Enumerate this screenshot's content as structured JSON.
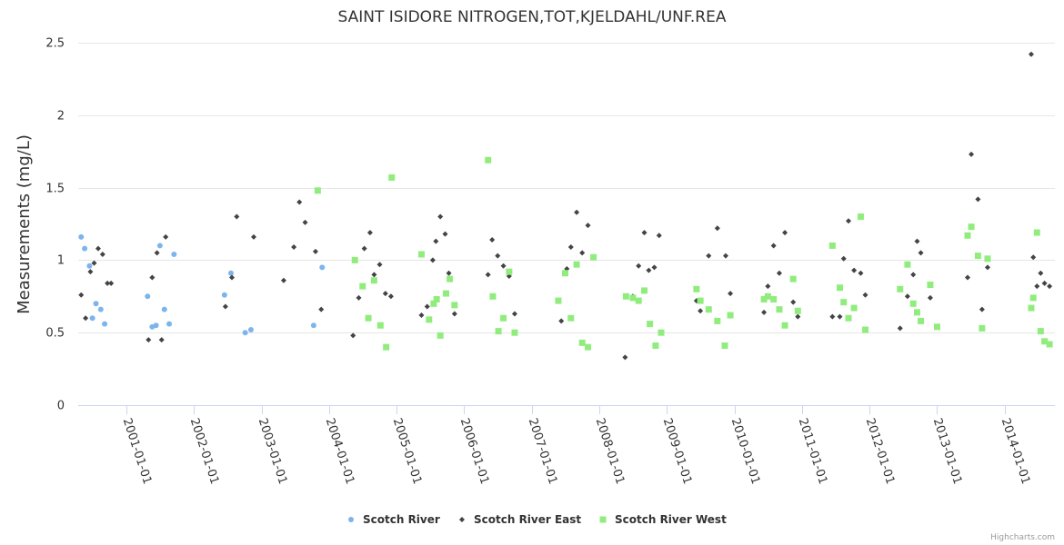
{
  "credits": "Highcharts.com",
  "chart_data": {
    "type": "scatter",
    "title": "SAINT ISIDORE NITROGEN,TOT,KJELDAHL/UNF.REA",
    "xlabel": "",
    "ylabel": "Measurements (mg/L)",
    "ylim": [
      0,
      2.5
    ],
    "yticks": [
      0,
      0.5,
      1,
      1.5,
      2,
      2.5
    ],
    "ytick_labels": [
      "0",
      "0.5",
      "1",
      "1.5",
      "2",
      "2.5"
    ],
    "xlim": [
      "2000-04-15",
      "2014-09-30"
    ],
    "xticks": [
      "2001-01-01",
      "2002-01-01",
      "2003-01-01",
      "2004-01-01",
      "2005-01-01",
      "2006-01-01",
      "2007-01-01",
      "2008-01-01",
      "2009-01-01",
      "2010-01-01",
      "2011-01-01",
      "2012-01-01",
      "2013-01-01",
      "2014-01-01"
    ],
    "grid": true,
    "legend_position": "bottom-center",
    "series": [
      {
        "name": "Scotch River",
        "color": "#7cb5ec",
        "marker": "circle",
        "points": [
          [
            "2000-05-01",
            1.16
          ],
          [
            "2000-05-20",
            1.08
          ],
          [
            "2000-06-15",
            0.96
          ],
          [
            "2000-07-01",
            0.6
          ],
          [
            "2000-07-20",
            0.7
          ],
          [
            "2000-08-15",
            0.66
          ],
          [
            "2000-09-05",
            0.56
          ],
          [
            "2001-04-25",
            0.75
          ],
          [
            "2001-05-20",
            0.54
          ],
          [
            "2001-06-10",
            0.55
          ],
          [
            "2001-07-01",
            1.1
          ],
          [
            "2001-07-25",
            0.66
          ],
          [
            "2001-08-20",
            0.56
          ],
          [
            "2001-09-15",
            1.04
          ],
          [
            "2002-06-15",
            0.76
          ],
          [
            "2002-07-20",
            0.91
          ],
          [
            "2002-10-05",
            0.5
          ],
          [
            "2002-11-05",
            0.52
          ],
          [
            "2003-10-10",
            0.55
          ],
          [
            "2003-11-25",
            0.95
          ]
        ]
      },
      {
        "name": "Scotch River East",
        "color": "#434348",
        "marker": "diamond",
        "points": [
          [
            "2000-05-01",
            0.76
          ],
          [
            "2000-05-25",
            0.6
          ],
          [
            "2000-06-20",
            0.92
          ],
          [
            "2000-07-10",
            0.98
          ],
          [
            "2000-08-01",
            1.08
          ],
          [
            "2000-08-25",
            1.04
          ],
          [
            "2000-09-20",
            0.84
          ],
          [
            "2000-10-10",
            0.84
          ],
          [
            "2001-04-30",
            0.45
          ],
          [
            "2001-05-20",
            0.88
          ],
          [
            "2001-06-15",
            1.05
          ],
          [
            "2001-07-10",
            0.45
          ],
          [
            "2001-08-01",
            1.16
          ],
          [
            "2002-06-20",
            0.68
          ],
          [
            "2002-07-25",
            0.88
          ],
          [
            "2002-08-20",
            1.3
          ],
          [
            "2002-11-20",
            1.16
          ],
          [
            "2003-05-01",
            0.86
          ],
          [
            "2003-06-25",
            1.09
          ],
          [
            "2003-07-25",
            1.4
          ],
          [
            "2003-08-25",
            1.26
          ],
          [
            "2003-10-20",
            1.06
          ],
          [
            "2003-11-20",
            0.66
          ],
          [
            "2004-05-10",
            0.48
          ],
          [
            "2004-06-10",
            0.74
          ],
          [
            "2004-07-10",
            1.08
          ],
          [
            "2004-08-10",
            1.19
          ],
          [
            "2004-09-01",
            0.9
          ],
          [
            "2004-10-01",
            0.97
          ],
          [
            "2004-11-01",
            0.77
          ],
          [
            "2004-12-01",
            0.75
          ],
          [
            "2005-05-15",
            0.62
          ],
          [
            "2005-06-15",
            0.68
          ],
          [
            "2005-07-15",
            1.0
          ],
          [
            "2005-08-01",
            1.13
          ],
          [
            "2005-08-25",
            1.3
          ],
          [
            "2005-09-20",
            1.18
          ],
          [
            "2005-10-10",
            0.91
          ],
          [
            "2005-11-10",
            0.63
          ],
          [
            "2006-05-10",
            0.9
          ],
          [
            "2006-06-01",
            1.14
          ],
          [
            "2006-07-01",
            1.03
          ],
          [
            "2006-08-01",
            0.96
          ],
          [
            "2006-09-01",
            0.89
          ],
          [
            "2006-10-01",
            0.63
          ],
          [
            "2007-06-10",
            0.58
          ],
          [
            "2007-07-10",
            0.94
          ],
          [
            "2007-08-01",
            1.09
          ],
          [
            "2007-09-01",
            1.33
          ],
          [
            "2007-10-01",
            1.05
          ],
          [
            "2007-11-01",
            1.24
          ],
          [
            "2008-05-20",
            0.33
          ],
          [
            "2008-07-01",
            0.75
          ],
          [
            "2008-08-01",
            0.96
          ],
          [
            "2008-09-01",
            1.19
          ],
          [
            "2008-09-25",
            0.93
          ],
          [
            "2008-10-25",
            0.95
          ],
          [
            "2008-11-20",
            1.17
          ],
          [
            "2009-06-10",
            0.72
          ],
          [
            "2009-07-01",
            0.65
          ],
          [
            "2009-08-15",
            1.03
          ],
          [
            "2009-10-01",
            1.22
          ],
          [
            "2009-11-15",
            1.03
          ],
          [
            "2009-12-10",
            0.77
          ],
          [
            "2010-06-10",
            0.64
          ],
          [
            "2010-07-01",
            0.82
          ],
          [
            "2010-08-01",
            1.1
          ],
          [
            "2010-09-01",
            0.91
          ],
          [
            "2010-10-01",
            1.19
          ],
          [
            "2010-11-15",
            0.71
          ],
          [
            "2010-12-10",
            0.61
          ],
          [
            "2011-06-15",
            0.61
          ],
          [
            "2011-07-25",
            0.61
          ],
          [
            "2011-08-15",
            1.01
          ],
          [
            "2011-09-10",
            1.27
          ],
          [
            "2011-10-10",
            0.93
          ],
          [
            "2011-11-15",
            0.91
          ],
          [
            "2011-12-10",
            0.76
          ],
          [
            "2012-06-15",
            0.53
          ],
          [
            "2012-07-25",
            0.75
          ],
          [
            "2012-08-25",
            0.9
          ],
          [
            "2012-09-15",
            1.13
          ],
          [
            "2012-10-05",
            1.05
          ],
          [
            "2012-11-25",
            0.74
          ],
          [
            "2013-06-15",
            0.88
          ],
          [
            "2013-07-05",
            1.73
          ],
          [
            "2013-08-10",
            1.42
          ],
          [
            "2013-09-01",
            0.66
          ],
          [
            "2013-10-01",
            0.95
          ],
          [
            "2014-05-25",
            2.42
          ],
          [
            "2014-06-05",
            1.02
          ],
          [
            "2014-06-25",
            0.82
          ],
          [
            "2014-07-15",
            0.91
          ],
          [
            "2014-08-05",
            0.84
          ],
          [
            "2014-09-01",
            0.82
          ]
        ]
      },
      {
        "name": "Scotch River West",
        "color": "#90ed7d",
        "marker": "square",
        "points": [
          [
            "2003-11-01",
            1.48
          ],
          [
            "2004-05-20",
            1.0
          ],
          [
            "2004-07-01",
            0.82
          ],
          [
            "2004-08-01",
            0.6
          ],
          [
            "2004-09-01",
            0.86
          ],
          [
            "2004-10-05",
            0.55
          ],
          [
            "2004-11-05",
            0.4
          ],
          [
            "2004-12-05",
            1.57
          ],
          [
            "2005-05-15",
            1.04
          ],
          [
            "2005-06-25",
            0.59
          ],
          [
            "2005-07-20",
            0.7
          ],
          [
            "2005-08-05",
            0.73
          ],
          [
            "2005-08-25",
            0.48
          ],
          [
            "2005-09-25",
            0.77
          ],
          [
            "2005-10-15",
            0.87
          ],
          [
            "2005-11-10",
            0.69
          ],
          [
            "2006-05-10",
            1.69
          ],
          [
            "2006-06-05",
            0.75
          ],
          [
            "2006-07-05",
            0.51
          ],
          [
            "2006-08-01",
            0.6
          ],
          [
            "2006-09-01",
            0.92
          ],
          [
            "2006-10-01",
            0.5
          ],
          [
            "2007-05-25",
            0.72
          ],
          [
            "2007-07-01",
            0.91
          ],
          [
            "2007-08-01",
            0.6
          ],
          [
            "2007-09-01",
            0.97
          ],
          [
            "2007-10-01",
            0.43
          ],
          [
            "2007-11-01",
            0.4
          ],
          [
            "2007-12-01",
            1.02
          ],
          [
            "2008-05-25",
            0.75
          ],
          [
            "2008-07-01",
            0.74
          ],
          [
            "2008-08-01",
            0.72
          ],
          [
            "2008-09-01",
            0.79
          ],
          [
            "2008-10-01",
            0.56
          ],
          [
            "2008-11-01",
            0.41
          ],
          [
            "2008-12-01",
            0.5
          ],
          [
            "2009-06-10",
            0.8
          ],
          [
            "2009-07-01",
            0.72
          ],
          [
            "2009-08-15",
            0.66
          ],
          [
            "2009-10-01",
            0.58
          ],
          [
            "2009-11-10",
            0.41
          ],
          [
            "2009-12-10",
            0.62
          ],
          [
            "2010-06-10",
            0.73
          ],
          [
            "2010-07-01",
            0.75
          ],
          [
            "2010-08-01",
            0.73
          ],
          [
            "2010-09-01",
            0.66
          ],
          [
            "2010-10-01",
            0.55
          ],
          [
            "2010-11-15",
            0.87
          ],
          [
            "2010-12-10",
            0.65
          ],
          [
            "2011-06-15",
            1.1
          ],
          [
            "2011-07-25",
            0.81
          ],
          [
            "2011-08-15",
            0.71
          ],
          [
            "2011-09-10",
            0.6
          ],
          [
            "2011-10-10",
            0.67
          ],
          [
            "2011-11-15",
            1.3
          ],
          [
            "2011-12-10",
            0.52
          ],
          [
            "2012-06-15",
            0.8
          ],
          [
            "2012-07-25",
            0.97
          ],
          [
            "2012-08-25",
            0.7
          ],
          [
            "2012-09-15",
            0.64
          ],
          [
            "2012-10-05",
            0.58
          ],
          [
            "2012-11-25",
            0.83
          ],
          [
            "2013-01-01",
            0.54
          ],
          [
            "2013-06-15",
            1.17
          ],
          [
            "2013-07-05",
            1.23
          ],
          [
            "2013-08-10",
            1.03
          ],
          [
            "2013-09-01",
            0.53
          ],
          [
            "2013-10-01",
            1.01
          ],
          [
            "2014-05-25",
            0.67
          ],
          [
            "2014-06-05",
            0.74
          ],
          [
            "2014-06-25",
            1.19
          ],
          [
            "2014-07-15",
            0.51
          ],
          [
            "2014-08-05",
            0.44
          ],
          [
            "2014-09-01",
            0.42
          ]
        ]
      }
    ]
  }
}
